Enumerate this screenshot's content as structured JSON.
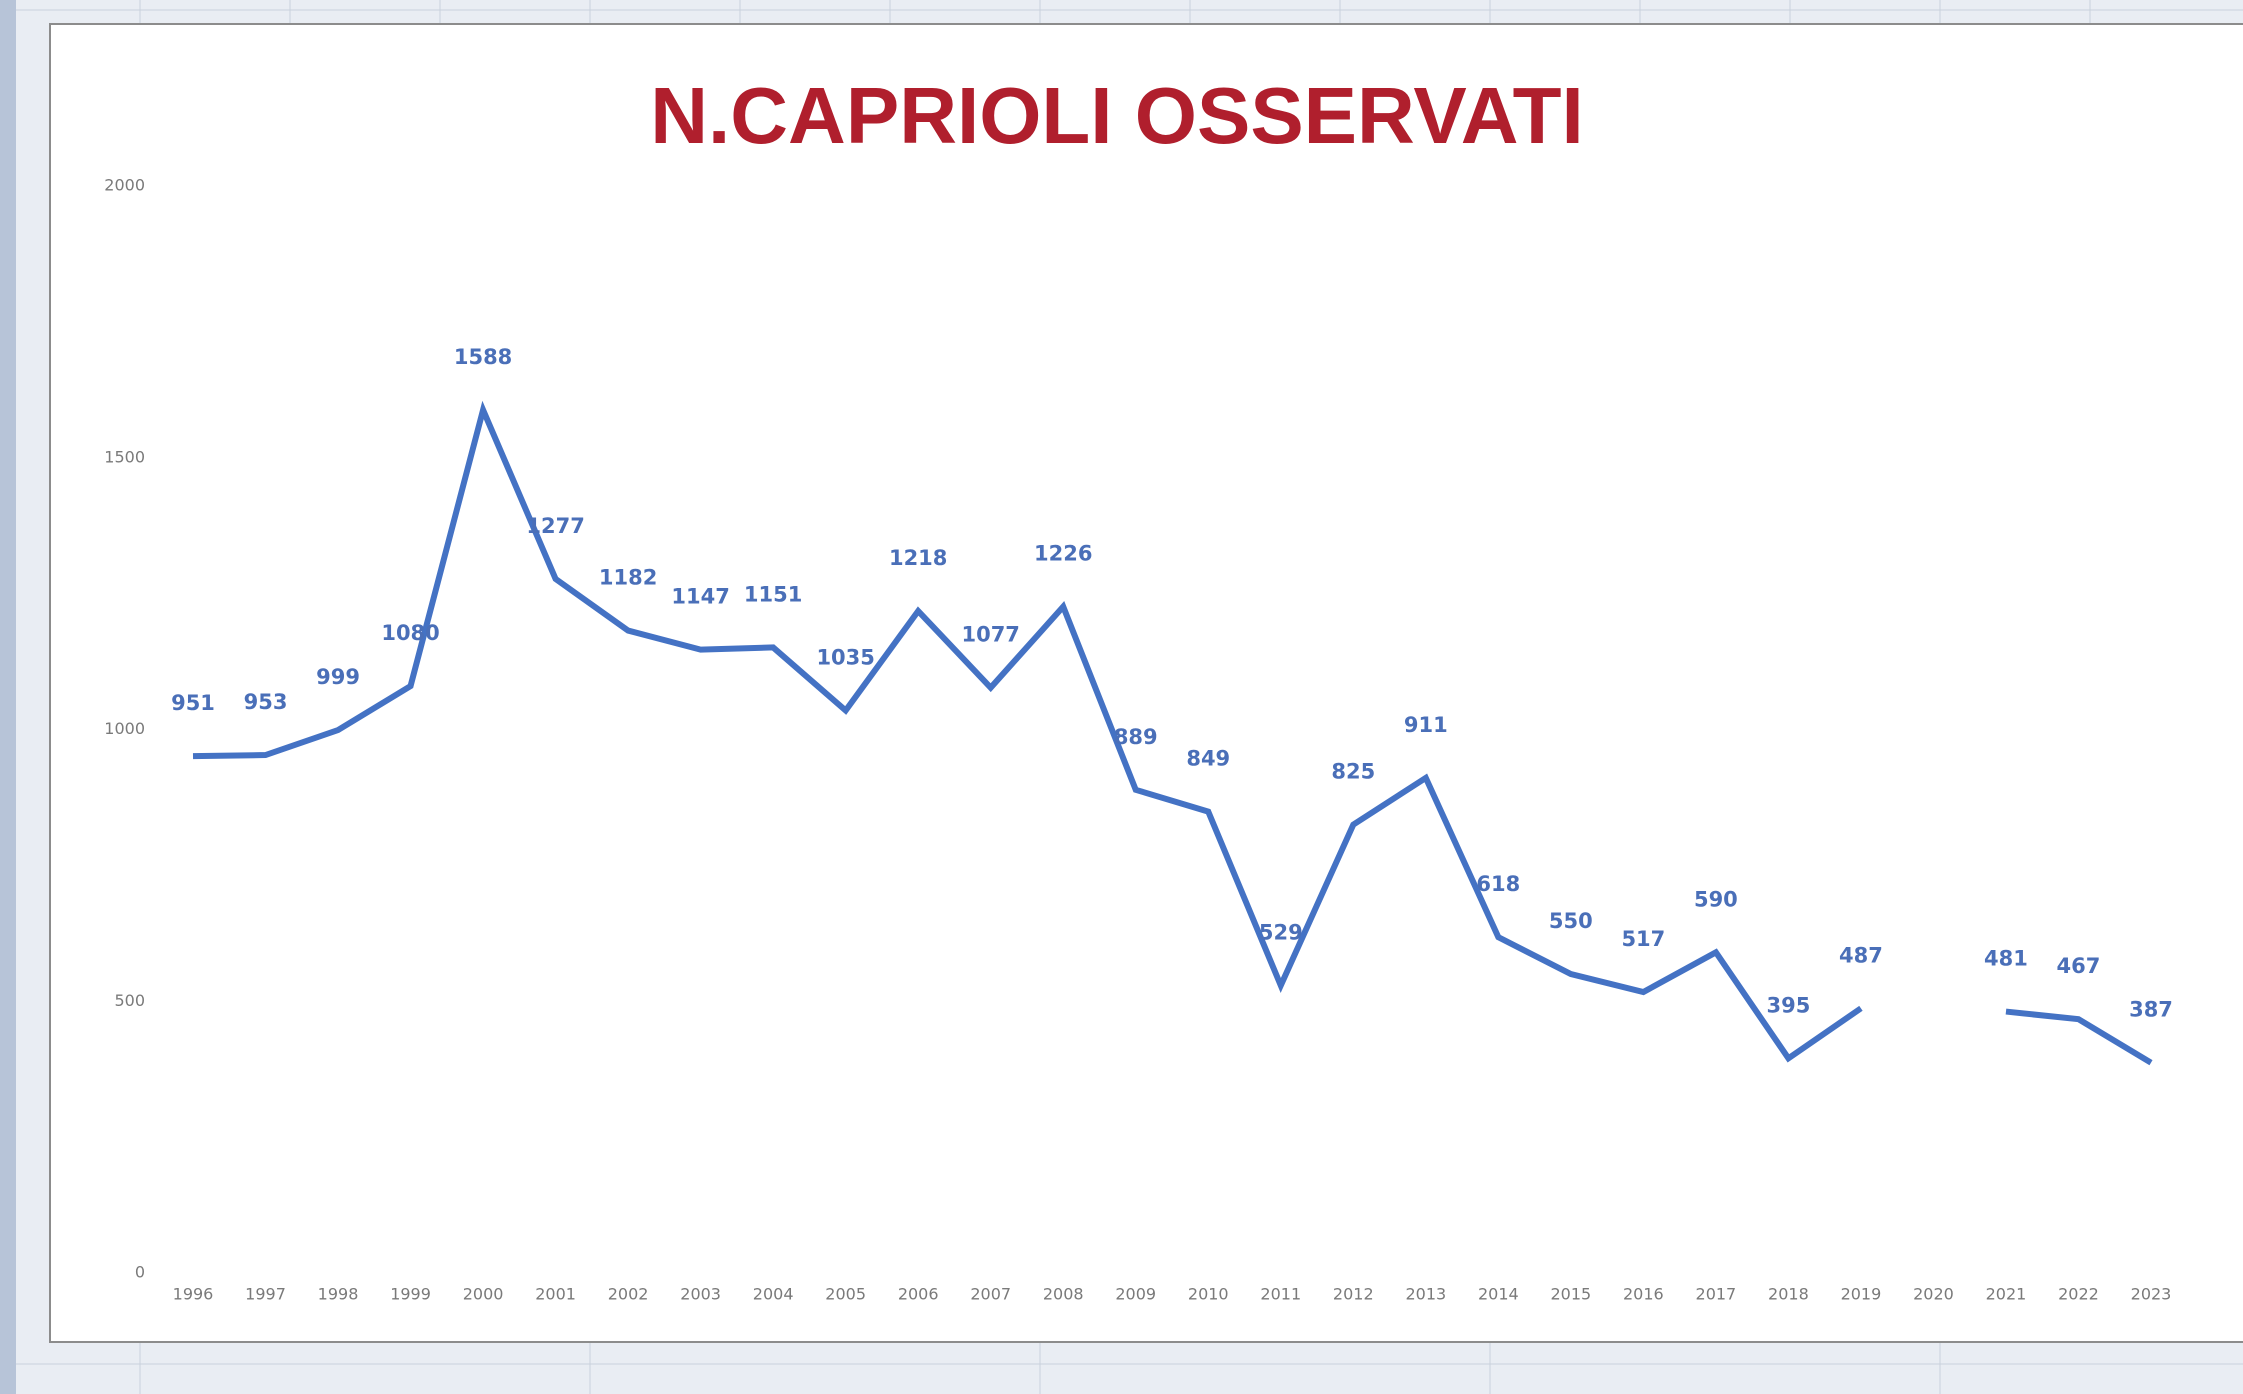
{
  "chart_data": {
    "type": "line",
    "title": "N.CAPRIOLI OSSERVATI",
    "categories": [
      "1996",
      "1997",
      "1998",
      "1999",
      "2000",
      "2001",
      "2002",
      "2003",
      "2004",
      "2005",
      "2006",
      "2007",
      "2008",
      "2009",
      "2010",
      "2011",
      "2012",
      "2013",
      "2014",
      "2015",
      "2016",
      "2017",
      "2018",
      "2019",
      "2020",
      "2021",
      "2022",
      "2023"
    ],
    "values": [
      951,
      953,
      999,
      1080,
      1588,
      1277,
      1182,
      1147,
      1151,
      1035,
      1218,
      1077,
      1226,
      889,
      849,
      529,
      825,
      911,
      618,
      550,
      517,
      590,
      395,
      487,
      null,
      481,
      467,
      387
    ],
    "color": "#4472c4",
    "ylim": [
      0,
      2000
    ],
    "yticks": [
      0,
      500,
      1000,
      1500,
      2000
    ],
    "grid": false
  }
}
